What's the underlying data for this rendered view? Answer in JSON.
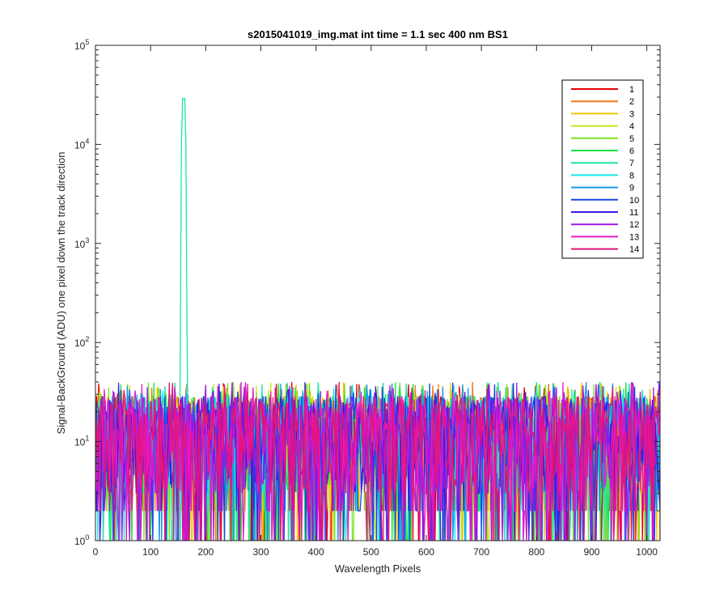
{
  "chart_data": {
    "type": "line",
    "title": "s2015041019_img.mat int time = 1.1 sec  400 nm BS1",
    "xlabel": "Wavelength Pixels",
    "ylabel": "Signal-BackGround (ADU) one pixel down the track direction",
    "xlim": [
      0,
      1024
    ],
    "ylim": [
      1,
      100000
    ],
    "yscale": "log",
    "x_ticks": [
      0,
      100,
      200,
      300,
      400,
      500,
      600,
      700,
      800,
      900,
      1000
    ],
    "y_ticks": [
      {
        "value": 1,
        "base": "10",
        "exp": "0"
      },
      {
        "value": 10,
        "base": "10",
        "exp": "1"
      },
      {
        "value": 100,
        "base": "10",
        "exp": "2"
      },
      {
        "value": 1000,
        "base": "10",
        "exp": "3"
      },
      {
        "value": 10000,
        "base": "10",
        "exp": "4"
      },
      {
        "value": 100000,
        "base": "10",
        "exp": "5"
      }
    ],
    "grid": false,
    "legend_position": "top-right",
    "series": [
      {
        "name": "1",
        "color": "#e60000"
      },
      {
        "name": "2",
        "color": "#f07818"
      },
      {
        "name": "3",
        "color": "#f5c400"
      },
      {
        "name": "4",
        "color": "#c8e61e"
      },
      {
        "name": "5",
        "color": "#78e61e"
      },
      {
        "name": "6",
        "color": "#19e646"
      },
      {
        "name": "7",
        "color": "#19e6a0"
      },
      {
        "name": "8",
        "color": "#19e6e6"
      },
      {
        "name": "9",
        "color": "#1996e6"
      },
      {
        "name": "10",
        "color": "#1446e6"
      },
      {
        "name": "11",
        "color": "#3c19e6"
      },
      {
        "name": "12",
        "color": "#a019e6"
      },
      {
        "name": "13",
        "color": "#e619c8"
      },
      {
        "name": "14",
        "color": "#e61478"
      }
    ],
    "features": {
      "noise_floor_range": [
        1,
        40
      ],
      "peak": {
        "series": "7",
        "x": 160,
        "y": 29000
      }
    }
  }
}
